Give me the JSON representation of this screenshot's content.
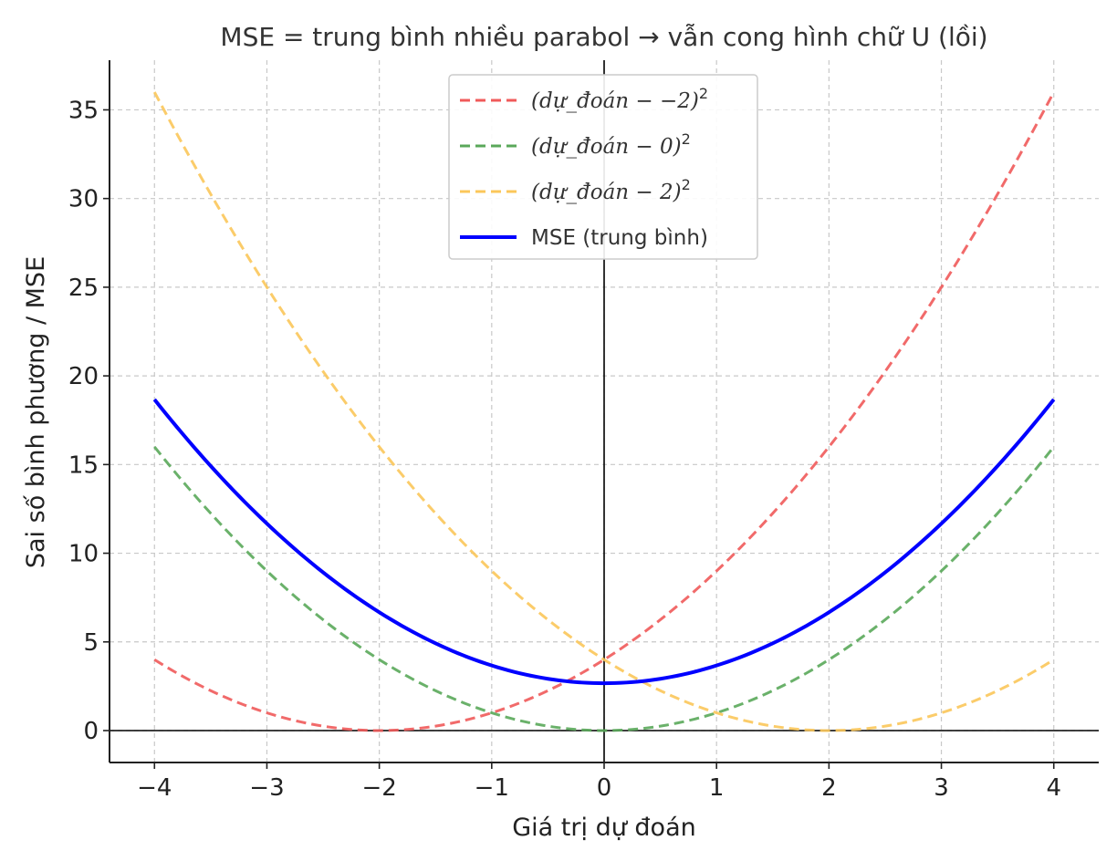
{
  "chart_data": {
    "type": "line",
    "title": "MSE = trung bình nhiều parabol → vẫn cong hình chữ U (lồi)",
    "xlabel": "Giá trị dự đoán",
    "ylabel": "Sai số bình phương / MSE",
    "xlim": [
      -4.4,
      4.4
    ],
    "ylim": [
      -1.8,
      37.8
    ],
    "xticks": [
      -4,
      -3,
      -2,
      -1,
      0,
      1,
      2,
      3,
      4
    ],
    "xtick_labels": [
      "−4",
      "−3",
      "−2",
      "−1",
      "0",
      "1",
      "2",
      "3",
      "4"
    ],
    "yticks": [
      0,
      5,
      10,
      15,
      20,
      25,
      30,
      35
    ],
    "ytick_labels": [
      "0",
      "5",
      "10",
      "15",
      "20",
      "25",
      "30",
      "35"
    ],
    "grid": true,
    "legend_position": "top-center",
    "reference_lines": {
      "x": 0,
      "y": 0
    },
    "x": [
      -4.0,
      -3.5,
      -3.0,
      -2.5,
      -2.0,
      -1.5,
      -1.0,
      -0.5,
      0.0,
      0.5,
      1.0,
      1.5,
      2.0,
      2.5,
      3.0,
      3.5,
      4.0
    ],
    "series": [
      {
        "name": "(dự_đoán − −2)²",
        "legend_base": "(dự_đoán − −2)",
        "legend_sup": "2",
        "color": "#f05a5a",
        "style": "dashed",
        "values": [
          4.0,
          2.25,
          1.0,
          0.25,
          0.0,
          0.25,
          1.0,
          2.25,
          4.0,
          6.25,
          9.0,
          12.25,
          16.0,
          20.25,
          25.0,
          30.25,
          36.0
        ]
      },
      {
        "name": "(dự_đoán − 0)²",
        "legend_base": "(dự_đoán − 0)",
        "legend_sup": "2",
        "color": "#5aa85a",
        "style": "dashed",
        "values": [
          16.0,
          12.25,
          9.0,
          6.25,
          4.0,
          2.25,
          1.0,
          0.25,
          0.0,
          0.25,
          1.0,
          2.25,
          4.0,
          6.25,
          9.0,
          12.25,
          16.0
        ]
      },
      {
        "name": "(dự_đoán − 2)²",
        "legend_base": "(dự_đoán − 2)",
        "legend_sup": "2",
        "color": "#fbc75a",
        "style": "dashed",
        "values": [
          36.0,
          30.25,
          25.0,
          20.25,
          16.0,
          12.25,
          9.0,
          6.25,
          4.0,
          2.25,
          1.0,
          0.25,
          0.0,
          0.25,
          1.0,
          2.25,
          4.0
        ]
      },
      {
        "name": "MSE (trung bình)",
        "color": "#0000ff",
        "style": "solid",
        "values": [
          18.67,
          14.92,
          11.67,
          8.92,
          6.67,
          4.92,
          3.67,
          2.92,
          2.67,
          2.92,
          3.67,
          4.92,
          6.67,
          8.92,
          11.67,
          14.92,
          18.67
        ]
      }
    ]
  }
}
